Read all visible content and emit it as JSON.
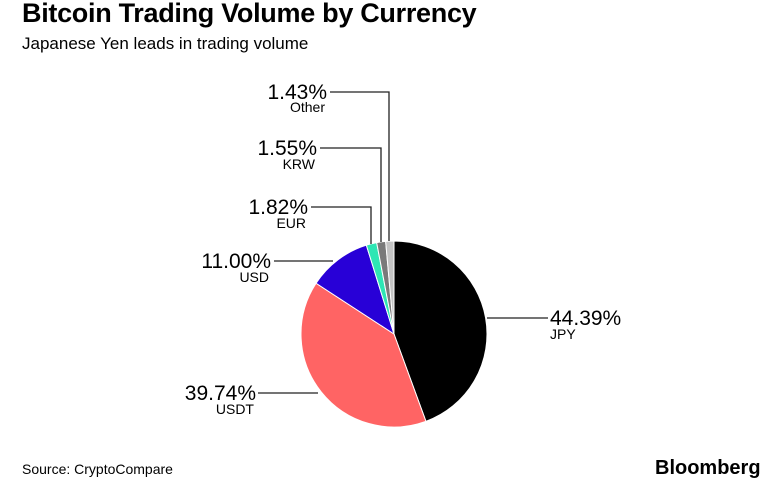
{
  "header": {
    "title": "Bitcoin Trading Volume by Currency",
    "subtitle": "Japanese Yen leads in trading volume"
  },
  "footer": {
    "source": "Source: CryptoCompare",
    "logo": "Bloomberg"
  },
  "labels": {
    "jpy_pct": "44.39%",
    "jpy_name": "JPY",
    "usdt_pct": "39.74%",
    "usdt_name": "USDT",
    "usd_pct": "11.00%",
    "usd_name": "USD",
    "eur_pct": "1.82%",
    "eur_name": "EUR",
    "krw_pct": "1.55%",
    "krw_name": "KRW",
    "other_pct": "1.43%",
    "other_name": "Other"
  },
  "chart_data": {
    "type": "pie",
    "title": "Bitcoin Trading Volume by Currency",
    "subtitle": "Japanese Yen leads in trading volume",
    "categories": [
      "JPY",
      "USDT",
      "USD",
      "EUR",
      "KRW",
      "Other"
    ],
    "values": [
      44.39,
      39.74,
      11.0,
      1.82,
      1.55,
      1.43
    ],
    "colors": [
      "#000000",
      "#ff6464",
      "#2800d7",
      "#2ee6b4",
      "#7a7a7a",
      "#c4c4c4"
    ],
    "start_angle": "12 o'clock, clockwise",
    "legend": "none (direct labels with leader lines)",
    "source": "Source: CryptoCompare"
  }
}
